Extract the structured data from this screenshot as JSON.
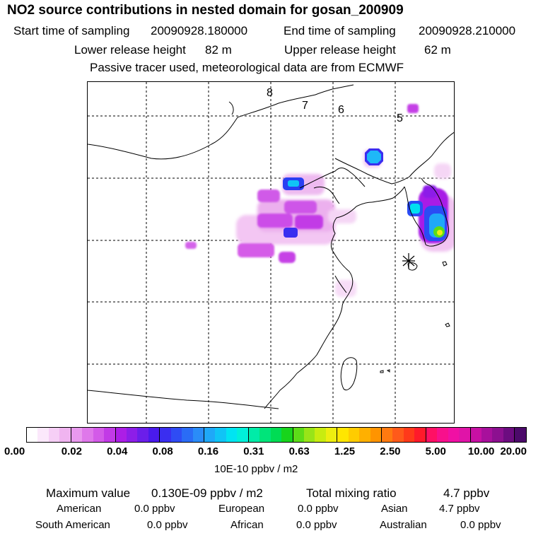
{
  "header": {
    "title": "NO2 source contributions in nested domain for gosan_200909",
    "start_label": "Start time of sampling",
    "start_value": "20090928.180000",
    "end_label": "End time of sampling",
    "end_value": "20090928.210000",
    "lower_label": "Lower release height",
    "lower_value": "82 m",
    "upper_label": "Upper release height",
    "upper_value": "62 m",
    "note": "Passive tracer used, meteorological data are from ECMWF"
  },
  "map": {
    "contour_labels": [
      "8",
      "7",
      "6",
      "5"
    ],
    "receptor_marker": "gosan-receptor-star"
  },
  "colorbar": {
    "unit": "10E-10 ppbv / m2",
    "ticks": [
      "0.00",
      "0.02",
      "0.04",
      "0.08",
      "0.16",
      "0.31",
      "0.63",
      "1.25",
      "2.50",
      "5.00",
      "10.00",
      "20.00"
    ],
    "colors": [
      "#ffffff",
      "#fbe8fb",
      "#f6cff6",
      "#f0b4f0",
      "#e999ee",
      "#df78ea",
      "#d35ae8",
      "#c23ae6",
      "#ac1ee6",
      "#8d1ee8",
      "#6b1eea",
      "#4a1aec",
      "#3a2ef0",
      "#2f4cf4",
      "#2a6cf6",
      "#2a8cf8",
      "#1fa8f8",
      "#10c4f6",
      "#00e4f2",
      "#00f0da",
      "#00eca8",
      "#00e47a",
      "#00dc54",
      "#18d41c",
      "#5cdc18",
      "#98e418",
      "#c8ec10",
      "#eeee10",
      "#ffe600",
      "#ffcc00",
      "#ffb000",
      "#ff9400",
      "#ff7a10",
      "#ff5a1a",
      "#ff3a1a",
      "#ff1a2a",
      "#ff1064",
      "#f8108c",
      "#f010a4",
      "#e014a8",
      "#c810a4",
      "#a8109c",
      "#8c1090",
      "#6c0c80",
      "#4c0a6a"
    ]
  },
  "footer": {
    "max_label": "Maximum value",
    "max_value": "0.130E-09 ppbv / m2",
    "total_label": "Total mixing ratio",
    "total_value": "4.7 ppbv",
    "american_label": "American",
    "american_value": "0.0 ppbv",
    "european_label": "European",
    "european_value": "0.0 ppbv",
    "asian_label": "Asian",
    "asian_value": "4.7 ppbv",
    "south_american_label": "South American",
    "south_american_value": "0.0 ppbv",
    "african_label": "African",
    "african_value": "0.0 ppbv",
    "australian_label": "Australian",
    "australian_value": "0.0 ppbv"
  }
}
